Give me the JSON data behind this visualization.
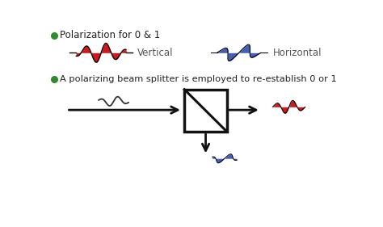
{
  "bg_color": "#ffffff",
  "bullet_color": "#2e8b2e",
  "bullet1_text": "Polarization for 0 & 1",
  "bullet2_text": "A polarizing beam splitter is employed to re-establish 0 or 1",
  "vertical_label": "Vertical",
  "horizontal_label": "Horizontal",
  "wave_red_color": "#cc0000",
  "wave_blue_color": "#2244aa",
  "wave_black_color": "#333333",
  "arrow_color": "#111111",
  "box_color": "#111111",
  "font_size_bullet": 8.5,
  "font_size_label": 8.5,
  "fig_width": 4.74,
  "fig_height": 2.81,
  "dpi": 100
}
